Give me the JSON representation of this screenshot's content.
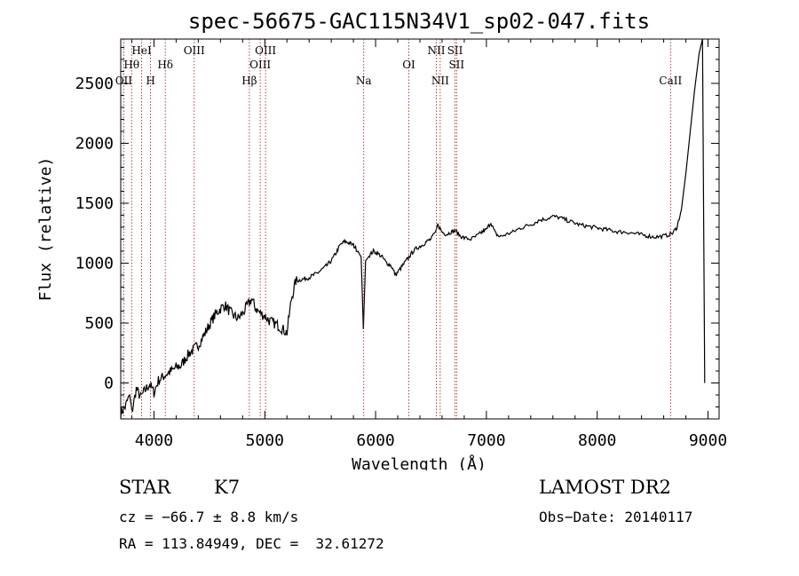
{
  "chart_data": {
    "type": "line",
    "title": "spec-56675-GAC115N34V1_sp02-047.fits",
    "xlabel": "Wavelength (Å)",
    "ylabel": "Flux (relative)",
    "xlim": [
      3700,
      9100
    ],
    "ylim": [
      -300,
      2870
    ],
    "xticks": [
      4000,
      5000,
      6000,
      7000,
      8000,
      9000
    ],
    "yticks": [
      0,
      500,
      1000,
      1500,
      2000,
      2500
    ],
    "grid": false,
    "spectral_lines": [
      {
        "label": "OII",
        "x": 3727,
        "row": 3
      },
      {
        "label": "Hθ",
        "x": 3798,
        "row": 2
      },
      {
        "label": "HeI",
        "x": 3889,
        "row": 1
      },
      {
        "label": "H",
        "x": 3969,
        "row": 3
      },
      {
        "label": "Hδ",
        "x": 4102,
        "row": 2
      },
      {
        "label": "OIII",
        "x": 4363,
        "row": 1
      },
      {
        "label": "Hβ",
        "x": 4861,
        "row": 3
      },
      {
        "label": "OIII",
        "x": 4959,
        "row": 2
      },
      {
        "label": "OIII",
        "x": 5007,
        "row": 1
      },
      {
        "label": "Na",
        "x": 5893,
        "row": 3
      },
      {
        "label": "OI",
        "x": 6300,
        "row": 2
      },
      {
        "label": "NII",
        "x": 6548,
        "row": 1
      },
      {
        "label": "NII",
        "x": 6583,
        "row": 3
      },
      {
        "label": "SII",
        "x": 6717,
        "row": 1
      },
      {
        "label": "SII",
        "x": 6731,
        "row": 2
      },
      {
        "label": "CaII",
        "x": 8662,
        "row": 3
      }
    ],
    "series": [
      {
        "points": [
          [
            3700,
            -250
          ],
          [
            3740,
            -200
          ],
          [
            3780,
            -100
          ],
          [
            3800,
            -250
          ],
          [
            3840,
            -50
          ],
          [
            3880,
            -120
          ],
          [
            3920,
            -60
          ],
          [
            3960,
            -10
          ],
          [
            4000,
            -80
          ],
          [
            4040,
            20
          ],
          [
            4080,
            50
          ],
          [
            4120,
            80
          ],
          [
            4160,
            100
          ],
          [
            4200,
            130
          ],
          [
            4240,
            140
          ],
          [
            4280,
            200
          ],
          [
            4320,
            250
          ],
          [
            4360,
            280
          ],
          [
            4400,
            320
          ],
          [
            4440,
            380
          ],
          [
            4480,
            450
          ],
          [
            4520,
            520
          ],
          [
            4560,
            580
          ],
          [
            4600,
            620
          ],
          [
            4640,
            650
          ],
          [
            4680,
            600
          ],
          [
            4720,
            560
          ],
          [
            4760,
            540
          ],
          [
            4800,
            580
          ],
          [
            4840,
            640
          ],
          [
            4880,
            700
          ],
          [
            4920,
            620
          ],
          [
            4960,
            580
          ],
          [
            5000,
            560
          ],
          [
            5040,
            520
          ],
          [
            5080,
            500
          ],
          [
            5120,
            480
          ],
          [
            5160,
            450
          ],
          [
            5200,
            420
          ],
          [
            5240,
            700
          ],
          [
            5280,
            850
          ],
          [
            5320,
            860
          ],
          [
            5360,
            870
          ],
          [
            5400,
            880
          ],
          [
            5440,
            900
          ],
          [
            5480,
            920
          ],
          [
            5520,
            950
          ],
          [
            5560,
            980
          ],
          [
            5600,
            1020
          ],
          [
            5640,
            1080
          ],
          [
            5680,
            1150
          ],
          [
            5720,
            1180
          ],
          [
            5760,
            1170
          ],
          [
            5800,
            1150
          ],
          [
            5840,
            1100
          ],
          [
            5870,
            1050
          ],
          [
            5890,
            450
          ],
          [
            5910,
            1020
          ],
          [
            5940,
            1060
          ],
          [
            5980,
            1100
          ],
          [
            6020,
            1080
          ],
          [
            6060,
            1050
          ],
          [
            6100,
            1000
          ],
          [
            6140,
            980
          ],
          [
            6180,
            900
          ],
          [
            6220,
            950
          ],
          [
            6260,
            1000
          ],
          [
            6300,
            1050
          ],
          [
            6340,
            1100
          ],
          [
            6380,
            1130
          ],
          [
            6420,
            1150
          ],
          [
            6460,
            1180
          ],
          [
            6500,
            1200
          ],
          [
            6540,
            1260
          ],
          [
            6563,
            1320
          ],
          [
            6600,
            1260
          ],
          [
            6640,
            1240
          ],
          [
            6680,
            1260
          ],
          [
            6720,
            1270
          ],
          [
            6760,
            1230
          ],
          [
            6800,
            1210
          ],
          [
            6860,
            1200
          ],
          [
            6920,
            1230
          ],
          [
            6960,
            1260
          ],
          [
            7000,
            1280
          ],
          [
            7040,
            1340
          ],
          [
            7080,
            1250
          ],
          [
            7120,
            1220
          ],
          [
            7180,
            1240
          ],
          [
            7240,
            1260
          ],
          [
            7300,
            1290
          ],
          [
            7360,
            1310
          ],
          [
            7420,
            1330
          ],
          [
            7480,
            1360
          ],
          [
            7540,
            1370
          ],
          [
            7600,
            1390
          ],
          [
            7660,
            1380
          ],
          [
            7720,
            1360
          ],
          [
            7780,
            1340
          ],
          [
            7840,
            1320
          ],
          [
            7900,
            1310
          ],
          [
            7960,
            1300
          ],
          [
            8020,
            1290
          ],
          [
            8080,
            1280
          ],
          [
            8140,
            1270
          ],
          [
            8200,
            1260
          ],
          [
            8260,
            1260
          ],
          [
            8320,
            1250
          ],
          [
            8380,
            1240
          ],
          [
            8440,
            1230
          ],
          [
            8500,
            1220
          ],
          [
            8560,
            1220
          ],
          [
            8620,
            1230
          ],
          [
            8680,
            1250
          ],
          [
            8720,
            1300
          ],
          [
            8760,
            1450
          ],
          [
            8800,
            1750
          ],
          [
            8840,
            2100
          ],
          [
            8880,
            2450
          ],
          [
            8920,
            2750
          ],
          [
            8950,
            2870
          ],
          [
            8970,
            0
          ]
        ]
      }
    ]
  },
  "info": {
    "object_class": "STAR",
    "subclass": "K7",
    "redshift": "cz = −66.7 ± 8.8 km/s",
    "coords": "RA = 113.84949, DEC =  32.61272",
    "survey": "LAMOST DR2",
    "obs_date": "Obs−Date: 20140117"
  }
}
